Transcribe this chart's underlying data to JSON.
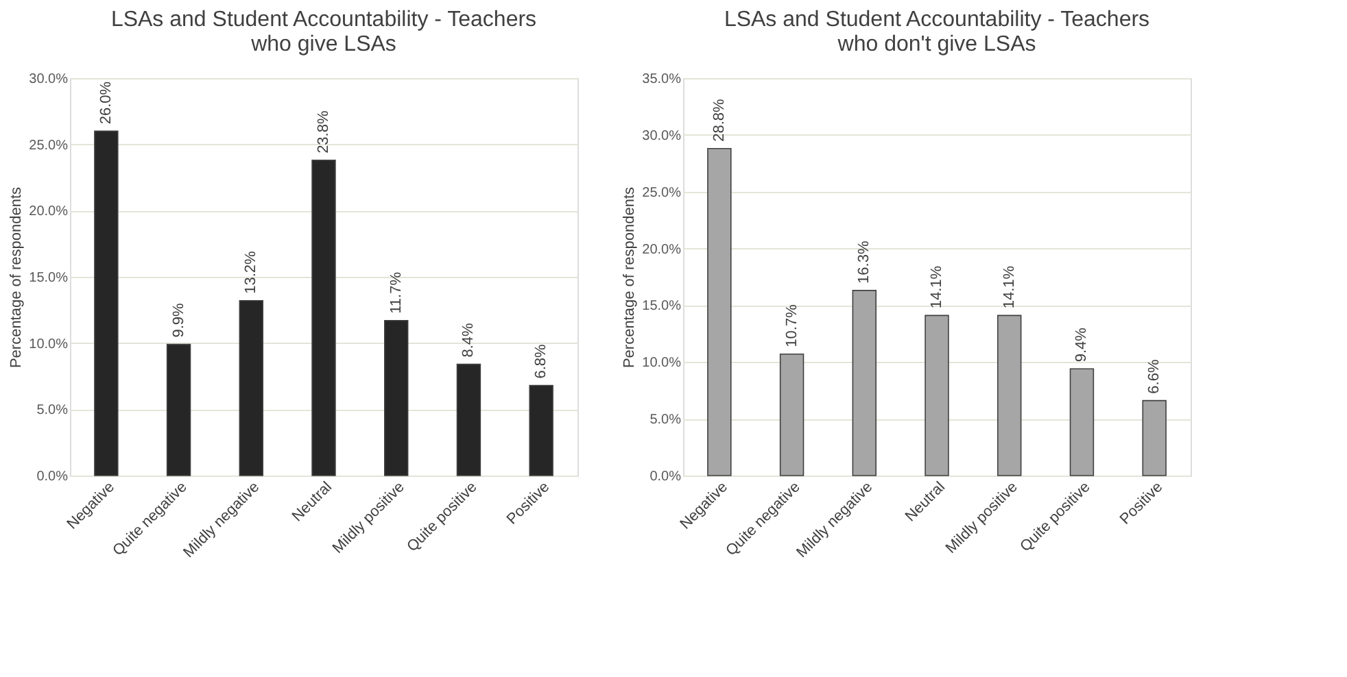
{
  "chart_data": [
    {
      "type": "bar",
      "title": "LSAs and Student Accountability - Teachers who give LSAs",
      "ylabel": "Percentage of respondents",
      "categories": [
        "Negative",
        "Quite negative",
        "Mildly negative",
        "Neutral",
        "Mildly positive",
        "Quite positive",
        "Positive"
      ],
      "values": [
        26.0,
        9.9,
        13.2,
        23.8,
        11.7,
        8.4,
        6.8
      ],
      "value_labels": [
        "26.0%",
        "9.9%",
        "13.2%",
        "23.8%",
        "11.7%",
        "8.4%",
        "6.8%"
      ],
      "color": "#262626",
      "ylim": [
        0,
        30
      ],
      "yticks": [
        {
          "value": 0,
          "label": "0.0%"
        },
        {
          "value": 5,
          "label": "5.0%"
        },
        {
          "value": 10,
          "label": "10.0%"
        },
        {
          "value": 15,
          "label": "15.0%"
        },
        {
          "value": 20,
          "label": "20.0%"
        },
        {
          "value": 25,
          "label": "25.0%"
        },
        {
          "value": 30,
          "label": "30.0%"
        }
      ],
      "grid": "y"
    },
    {
      "type": "bar",
      "title": "LSAs and Student Accountability - Teachers who don't give LSAs",
      "ylabel": "Percentage of respondents",
      "categories": [
        "Negative",
        "Quite negative",
        "Mildly negative",
        "Neutral",
        "Mildly positive",
        "Quite positive",
        "Positive"
      ],
      "values": [
        28.8,
        10.7,
        16.3,
        14.1,
        14.1,
        9.4,
        6.6
      ],
      "value_labels": [
        "28.8%",
        "10.7%",
        "16.3%",
        "14.1%",
        "14.1%",
        "9.4%",
        "6.6%"
      ],
      "color": "#a6a6a6",
      "ylim": [
        0,
        35
      ],
      "yticks": [
        {
          "value": 0,
          "label": "0.0%"
        },
        {
          "value": 5,
          "label": "5.0%"
        },
        {
          "value": 10,
          "label": "10.0%"
        },
        {
          "value": 15,
          "label": "15.0%"
        },
        {
          "value": 20,
          "label": "20.0%"
        },
        {
          "value": 25,
          "label": "25.0%"
        },
        {
          "value": 30,
          "label": "30.0%"
        },
        {
          "value": 35,
          "label": "35.0%"
        }
      ],
      "grid": "y"
    }
  ]
}
